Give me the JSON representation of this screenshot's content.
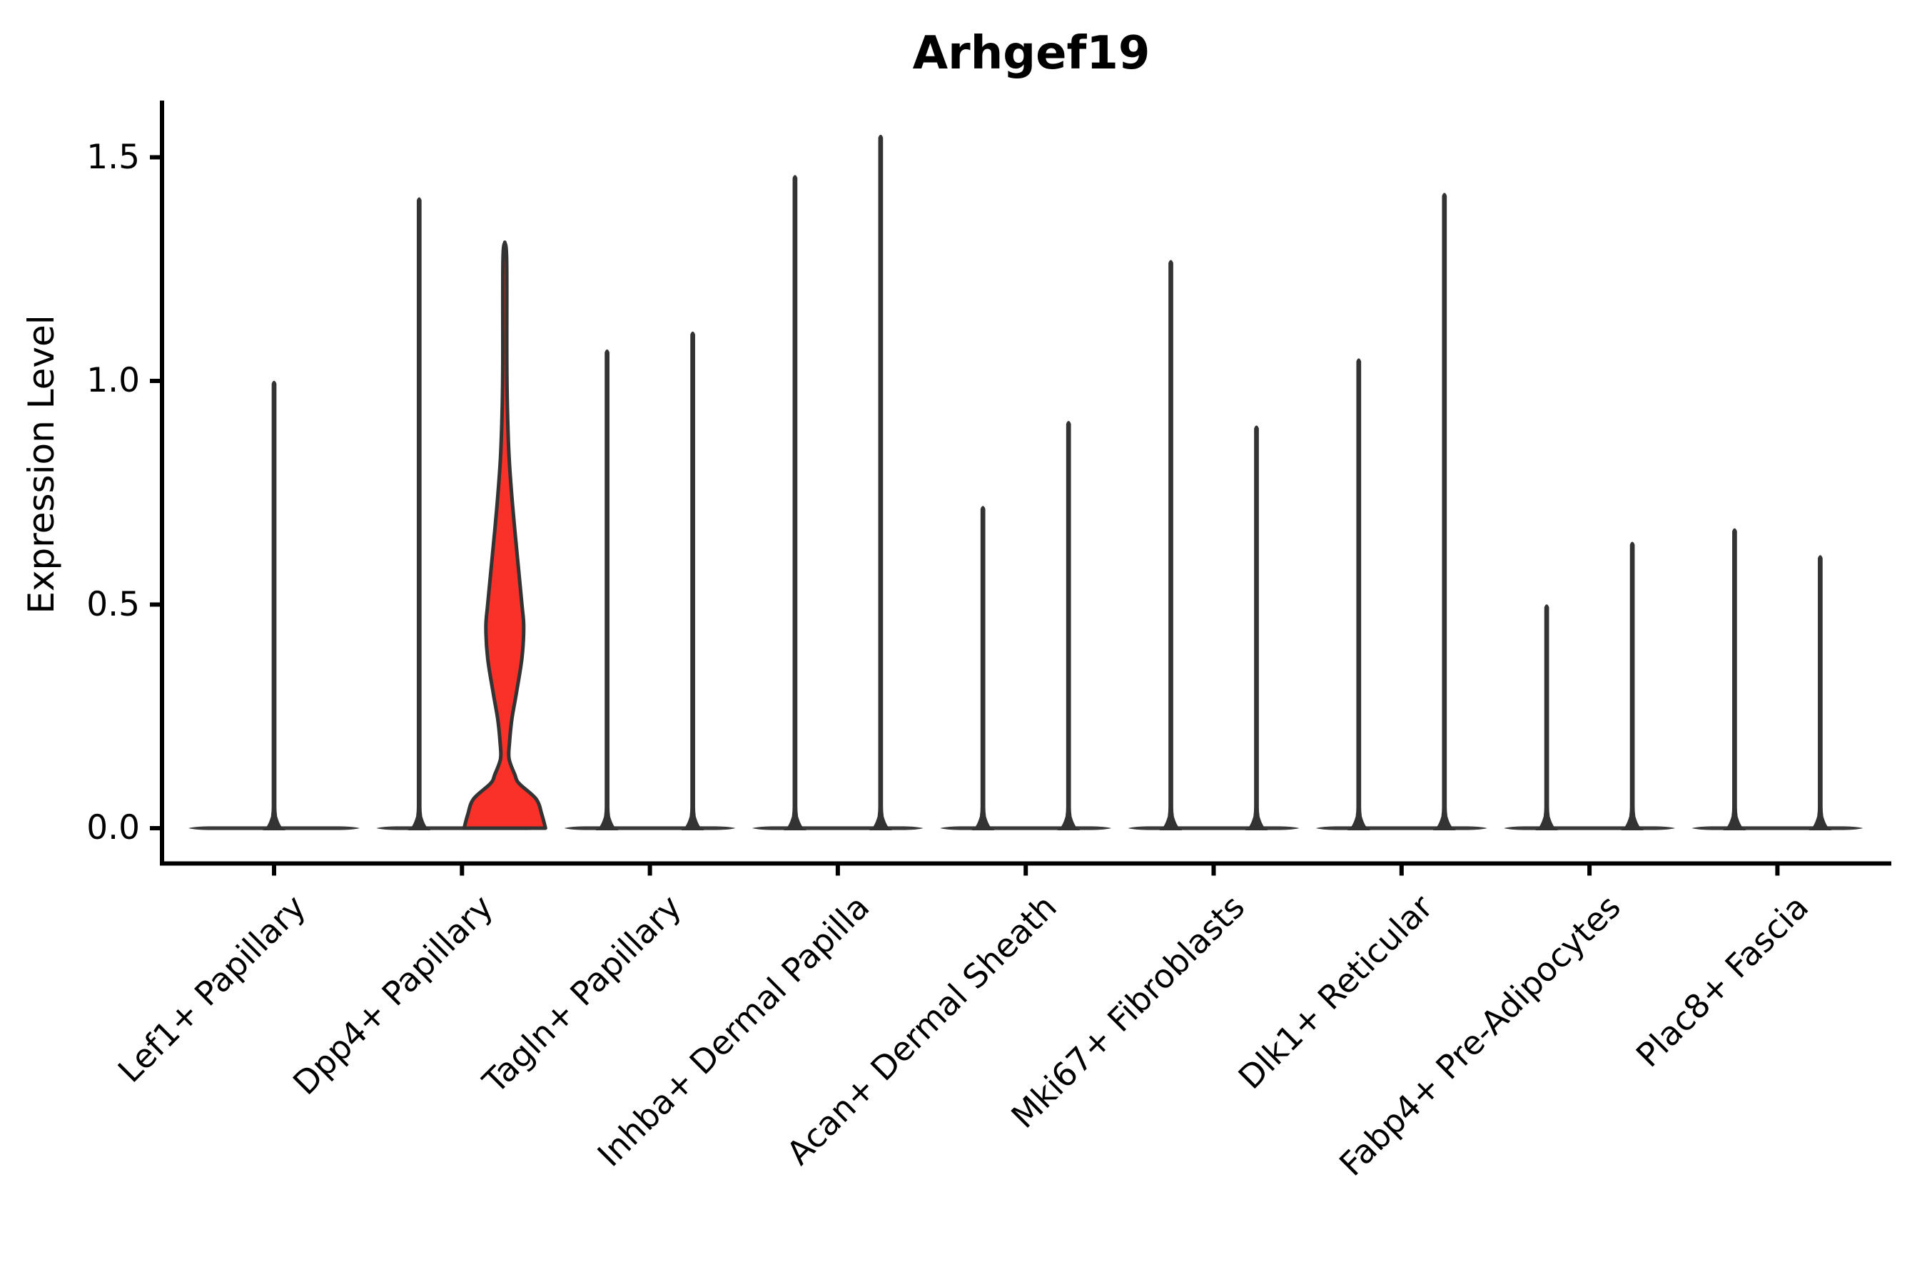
{
  "chart_data": {
    "type": "violin",
    "title": "Arhgef19",
    "xlabel": "",
    "ylabel": "Expression Level",
    "ylim": [
      0,
      1.63
    ],
    "yticks": [
      0.0,
      0.5,
      1.0,
      1.5
    ],
    "ytick_labels": [
      "0.0",
      "0.5",
      "1.0",
      "1.5"
    ],
    "grid": false,
    "legend": "none",
    "categories": [
      "Lef1+ Papillary",
      "Dpp4+ Papillary",
      "Tagln+ Papillary",
      "Inhba+ Dermal Papilla",
      "Acan+ Dermal Sheath",
      "Mki67+ Fibroblasts",
      "Dlk1+ Reticular",
      "Fabp4+ Pre-Adipocytes",
      "Plac8+ Fascia"
    ],
    "description": "Violin plot of Arhgef19 expression per cell type. Nearly all density sits at expression 0 (flat baseline lens at y=0); each violin shows a thin spike up to its maximum expressed value. Two dodged violins per category except Lef1+ Papillary, which has a single centered violin. The right-hand violin of Dpp4+ Papillary has visible density (red filled shape with a mid bulge near 0.45 and a wide base at 0).",
    "series": [
      {
        "name": "violin-left",
        "max_values": [
          1.0,
          1.41,
          1.07,
          1.46,
          0.72,
          1.27,
          1.05,
          0.5,
          0.67
        ]
      },
      {
        "name": "violin-right",
        "max_values": [
          null,
          1.31,
          1.11,
          1.55,
          0.91,
          0.9,
          1.42,
          0.64,
          0.61
        ]
      }
    ],
    "highlighted_violin": {
      "category": "Dpp4+ Papillary",
      "position": "right",
      "max_value": 1.31,
      "fill": "#f93128",
      "density_profile": [
        [
          1.31,
          0
        ],
        [
          1.27,
          2.6
        ],
        [
          1.05,
          2.8
        ],
        [
          0.95,
          3.5
        ],
        [
          0.83,
          6
        ],
        [
          0.72,
          11
        ],
        [
          0.6,
          18
        ],
        [
          0.5,
          24
        ],
        [
          0.45,
          26.5
        ],
        [
          0.38,
          24
        ],
        [
          0.3,
          16
        ],
        [
          0.245,
          10
        ],
        [
          0.19,
          6.5
        ],
        [
          0.155,
          6
        ],
        [
          0.12,
          14
        ],
        [
          0.1,
          20
        ],
        [
          0.065,
          44
        ],
        [
          0.03,
          52
        ],
        [
          0.0,
          57
        ]
      ]
    },
    "colors": {
      "violin_line": "#333333",
      "baseline": "#3a3a3a",
      "axis": "#000000",
      "highlight_fill": "#f93128",
      "background": "#ffffff"
    }
  }
}
